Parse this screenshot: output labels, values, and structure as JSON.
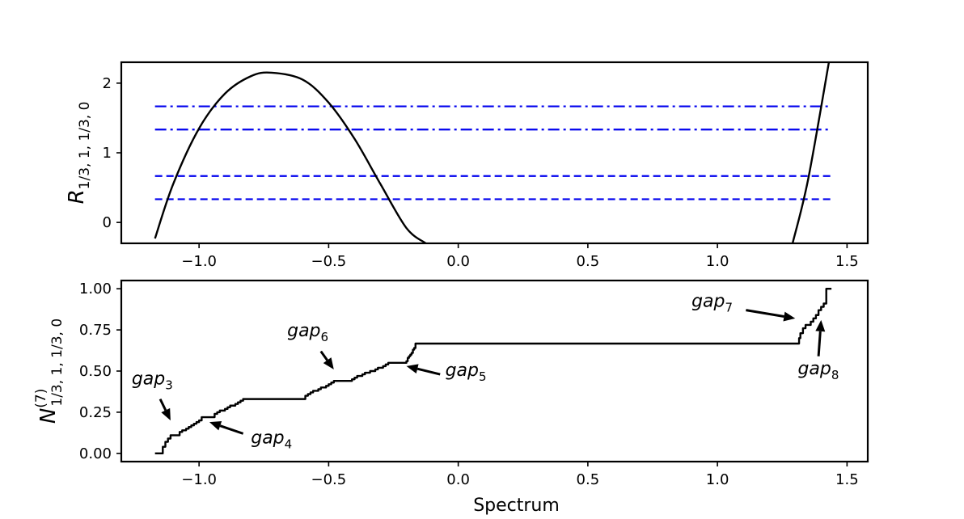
{
  "chart_data": [
    {
      "type": "line",
      "ylabel": "R",
      "ylabel_sub": "1/3, 1, 1/3, 0",
      "xlim": [
        -1.3,
        1.58
      ],
      "ylim": [
        -0.3,
        2.3
      ],
      "xticks": [
        -1.0,
        -0.5,
        0.0,
        0.5,
        1.0,
        1.5
      ],
      "xtick_labels": [
        "−1.0",
        "−0.5",
        "0.0",
        "0.5",
        "1.0",
        "1.5"
      ],
      "yticks": [
        0,
        1,
        2
      ],
      "ytick_labels": [
        "0",
        "1",
        "2"
      ],
      "series": [
        {
          "style": "solid",
          "color": "#000000",
          "x": [
            -1.17,
            -1.1,
            -1.0,
            -0.9,
            -0.8,
            -0.72,
            -0.6,
            -0.5,
            -0.4,
            -0.3,
            -0.2,
            -0.125
          ],
          "y": [
            -0.23,
            0.55,
            1.35,
            1.85,
            2.1,
            2.15,
            2.05,
            1.72,
            1.2,
            0.55,
            -0.08,
            -0.3
          ]
        },
        {
          "style": "solid",
          "color": "#000000",
          "x": [
            1.29,
            1.35,
            1.43
          ],
          "y": [
            -0.3,
            0.62,
            2.3
          ]
        }
      ],
      "hlines": [
        {
          "y": 1.6667,
          "style": "dashdot",
          "color": "#0000ee",
          "xmin": -1.17,
          "xmax": 1.44
        },
        {
          "y": 1.3333,
          "style": "dashdot",
          "color": "#0000ee",
          "xmin": -1.17,
          "xmax": 1.44
        },
        {
          "y": 0.6667,
          "style": "dashed",
          "color": "#0000ee",
          "xmin": -1.17,
          "xmax": 1.44
        },
        {
          "y": 0.3333,
          "style": "dashed",
          "color": "#0000ee",
          "xmin": -1.17,
          "xmax": 1.44
        }
      ]
    },
    {
      "type": "line",
      "xlabel": "Spectrum",
      "ylabel": "N",
      "ylabel_sup": "(7)",
      "ylabel_sub": "1/3, 1, 1/3, 0",
      "xlim": [
        -1.3,
        1.58
      ],
      "ylim": [
        -0.05,
        1.05
      ],
      "xticks": [
        -1.0,
        -0.5,
        0.0,
        0.5,
        1.0,
        1.5
      ],
      "xtick_labels": [
        "−1.0",
        "−0.5",
        "0.0",
        "0.5",
        "1.0",
        "1.5"
      ],
      "yticks": [
        0.0,
        0.25,
        0.5,
        0.75,
        1.0
      ],
      "ytick_labels": [
        "0.00",
        "0.25",
        "0.50",
        "0.75",
        "1.00"
      ],
      "series": [
        {
          "style": "step",
          "color": "#000000",
          "x": [
            -1.17,
            -1.15,
            -1.14,
            -1.13,
            -1.12,
            -1.11,
            -1.1,
            -1.085,
            -1.075,
            -1.065,
            -1.05,
            -1.04,
            -1.03,
            -1.02,
            -1.01,
            -1.0,
            -0.99,
            -0.98,
            -0.96,
            -0.94,
            -0.93,
            -0.92,
            -0.9,
            -0.89,
            -0.88,
            -0.86,
            -0.85,
            -0.84,
            -0.83,
            -0.82,
            -0.6,
            -0.59,
            -0.58,
            -0.57,
            -0.56,
            -0.55,
            -0.54,
            -0.53,
            -0.52,
            -0.51,
            -0.5,
            -0.49,
            -0.48,
            -0.47,
            -0.42,
            -0.41,
            -0.4,
            -0.39,
            -0.38,
            -0.37,
            -0.36,
            -0.35,
            -0.34,
            -0.33,
            -0.32,
            -0.31,
            -0.3,
            -0.29,
            -0.28,
            -0.27,
            -0.26,
            -0.25,
            -0.2,
            -0.195,
            -0.19,
            -0.185,
            -0.18,
            -0.175,
            -0.17,
            -0.165,
            1.31,
            1.315,
            1.32,
            1.33,
            1.34,
            1.35,
            1.36,
            1.37,
            1.38,
            1.39,
            1.4,
            1.41,
            1.42,
            1.44
          ],
          "y": [
            0.0,
            0.0,
            0.04,
            0.07,
            0.09,
            0.11,
            0.11,
            0.11,
            0.13,
            0.14,
            0.15,
            0.16,
            0.17,
            0.18,
            0.19,
            0.2,
            0.22,
            0.22,
            0.22,
            0.24,
            0.25,
            0.26,
            0.27,
            0.28,
            0.29,
            0.3,
            0.31,
            0.32,
            0.33,
            0.33,
            0.33,
            0.35,
            0.36,
            0.37,
            0.38,
            0.38,
            0.39,
            0.4,
            0.4,
            0.41,
            0.42,
            0.43,
            0.44,
            0.44,
            0.44,
            0.45,
            0.46,
            0.47,
            0.47,
            0.48,
            0.49,
            0.49,
            0.5,
            0.5,
            0.51,
            0.52,
            0.52,
            0.53,
            0.54,
            0.55,
            0.55,
            0.55,
            0.56,
            0.58,
            0.59,
            0.6,
            0.61,
            0.63,
            0.64,
            0.667,
            0.667,
            0.7,
            0.73,
            0.76,
            0.78,
            0.78,
            0.8,
            0.82,
            0.84,
            0.87,
            0.89,
            0.91,
            1.0,
            1.0
          ]
        }
      ],
      "annotations": [
        {
          "base": "gap",
          "sub": "3",
          "text_xy": [
            -1.26,
            0.42
          ],
          "arrow_from": [
            -1.15,
            0.33
          ],
          "arrow_to": [
            -1.11,
            0.2
          ]
        },
        {
          "base": "gap",
          "sub": "4",
          "text_xy": [
            -0.8,
            0.06
          ],
          "arrow_from": [
            -0.83,
            0.12
          ],
          "arrow_to": [
            -0.96,
            0.19
          ]
        },
        {
          "base": "gap",
          "sub": "5",
          "text_xy": [
            -0.05,
            0.47
          ],
          "arrow_from": [
            -0.07,
            0.48
          ],
          "arrow_to": [
            -0.2,
            0.53
          ]
        },
        {
          "base": "gap",
          "sub": "6",
          "text_xy": [
            -0.66,
            0.71
          ],
          "arrow_from": [
            -0.53,
            0.62
          ],
          "arrow_to": [
            -0.48,
            0.51
          ]
        },
        {
          "base": "gap",
          "sub": "7",
          "text_xy": [
            0.9,
            0.89
          ],
          "arrow_from": [
            1.11,
            0.87
          ],
          "arrow_to": [
            1.3,
            0.82
          ]
        },
        {
          "base": "gap",
          "sub": "8",
          "text_xy": [
            1.31,
            0.48
          ],
          "arrow_from": [
            1.39,
            0.59
          ],
          "arrow_to": [
            1.4,
            0.81
          ]
        }
      ]
    }
  ]
}
